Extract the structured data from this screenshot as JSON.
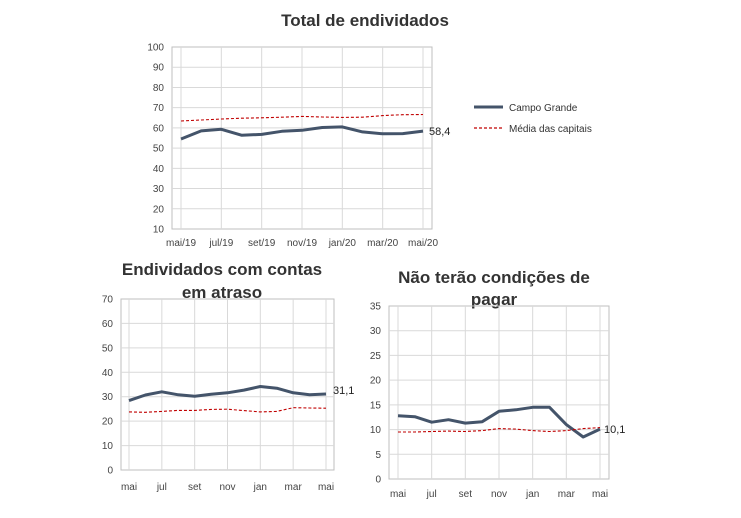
{
  "colors": {
    "campo_grande": "#44546A",
    "media_capitais": "#C00000",
    "grid": "#D9D9D9",
    "axis": "#BFBFBF"
  },
  "legend": {
    "series1": "Campo Grande",
    "series2": "Média das capitais"
  },
  "chart_data": [
    {
      "type": "line",
      "title": "Total de endividados",
      "x_ticks": [
        "mai/19",
        "jul/19",
        "set/19",
        "nov/19",
        "jan/20",
        "mar/20",
        "mai/20"
      ],
      "x": [
        "mai/19",
        "jun/19",
        "jul/19",
        "ago/19",
        "set/19",
        "out/19",
        "nov/19",
        "dez/19",
        "jan/20",
        "fev/20",
        "mar/20",
        "abr/20",
        "mai/20"
      ],
      "ylim": [
        10,
        100
      ],
      "y_ticks": [
        "100",
        "90",
        "80",
        "70",
        "60",
        "50",
        "40",
        "30",
        "20",
        "10"
      ],
      "legend_position": "right",
      "end_label": "58,4",
      "series": [
        {
          "name": "Campo Grande",
          "values": [
            54.5,
            58.5,
            59.3,
            56.4,
            56.8,
            58.3,
            58.8,
            60.2,
            60.5,
            58.0,
            57.1,
            57.2,
            58.4
          ]
        },
        {
          "name": "Média das capitais",
          "values": [
            63.4,
            63.9,
            64.4,
            64.8,
            65.0,
            65.3,
            65.7,
            65.4,
            65.2,
            65.3,
            66.1,
            66.5,
            66.6
          ]
        }
      ]
    },
    {
      "type": "line",
      "title_lines": [
        "Endividados  com contas",
        "em atraso"
      ],
      "x_ticks": [
        "mai",
        "jul",
        "set",
        "nov",
        "jan",
        "mar",
        "mai"
      ],
      "x": [
        "mai",
        "jun",
        "jul",
        "ago",
        "set",
        "out",
        "nov",
        "dez",
        "jan",
        "fev",
        "mar",
        "abr",
        "mai"
      ],
      "ylim": [
        0,
        70
      ],
      "y_ticks": [
        "70",
        "60",
        "50",
        "40",
        "30",
        "20",
        "10",
        "0"
      ],
      "end_label": "31,1",
      "series": [
        {
          "name": "Campo Grande",
          "values": [
            28.4,
            30.7,
            32.0,
            30.8,
            30.2,
            31.0,
            31.6,
            32.7,
            34.2,
            33.5,
            31.6,
            30.8,
            31.1
          ]
        },
        {
          "name": "Média das capitais",
          "values": [
            23.8,
            23.6,
            24.0,
            24.4,
            24.4,
            24.8,
            24.9,
            24.3,
            23.8,
            24.0,
            25.5,
            25.4,
            25.3
          ]
        }
      ]
    },
    {
      "type": "line",
      "title_lines": [
        "Não terão condições de",
        "pagar"
      ],
      "x_ticks": [
        "mai",
        "jul",
        "set",
        "nov",
        "jan",
        "mar",
        "mai"
      ],
      "x": [
        "mai",
        "jun",
        "jul",
        "ago",
        "set",
        "out",
        "nov",
        "dez",
        "jan",
        "fev",
        "mar",
        "abr",
        "mai"
      ],
      "ylim": [
        0,
        35
      ],
      "y_ticks": [
        "35",
        "30",
        "25",
        "20",
        "15",
        "10",
        "5",
        "0"
      ],
      "end_label": "10,1",
      "series": [
        {
          "name": "Campo Grande",
          "values": [
            12.8,
            12.6,
            11.5,
            12.0,
            11.3,
            11.6,
            13.7,
            14.0,
            14.5,
            14.5,
            11.0,
            8.5,
            10.1
          ]
        },
        {
          "name": "Média das capitais",
          "values": [
            9.5,
            9.5,
            9.6,
            9.7,
            9.6,
            9.8,
            10.2,
            10.1,
            9.8,
            9.6,
            9.8,
            10.2,
            10.4
          ]
        }
      ]
    }
  ]
}
